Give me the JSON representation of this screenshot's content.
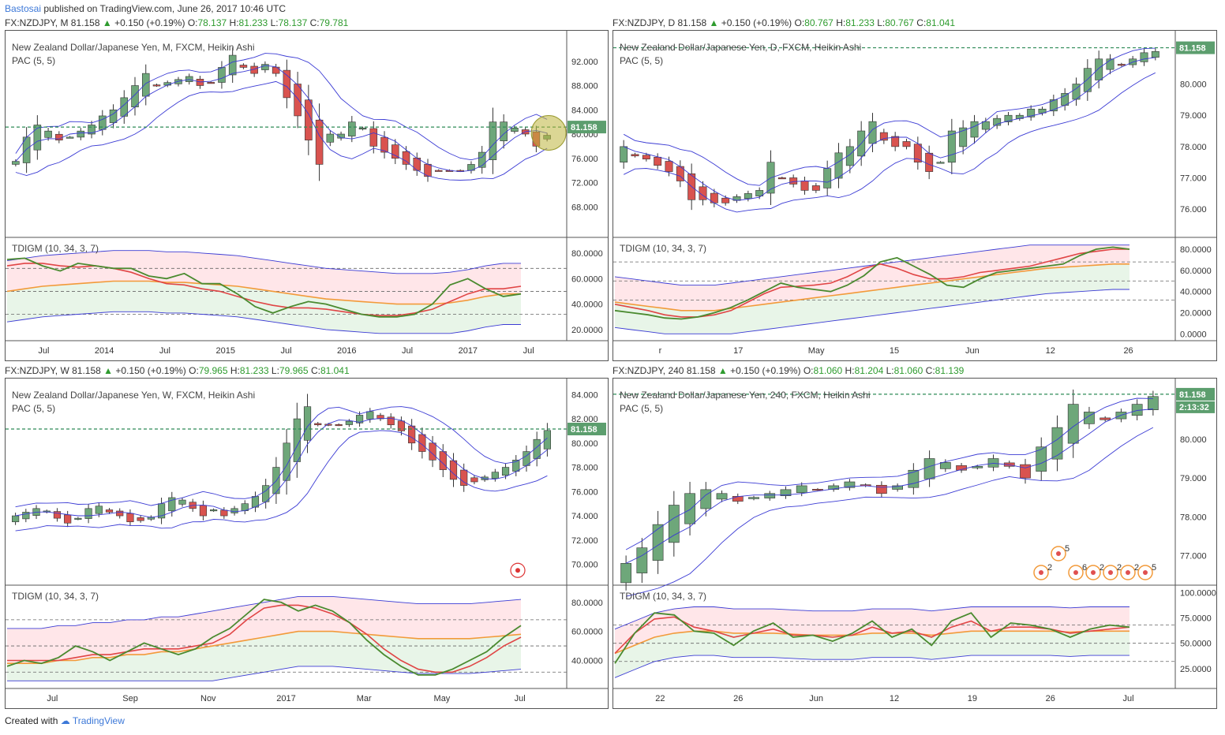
{
  "page": {
    "author": "Bastosai",
    "published": "published on TradingView.com, June 26, 2017 10:46 UTC",
    "created_with": "Created with",
    "brand": "TradingView"
  },
  "colors": {
    "bull": "#6ea77a",
    "bear": "#d9534f",
    "pac": "#3b3bd4",
    "tdi_green": "#4a8a2f",
    "tdi_red": "#e04545",
    "tdi_orange": "#f29a3a",
    "price_line": "#2e8b57",
    "price_tag": "#5c9e6e"
  },
  "chart_data": [
    {
      "id": "monthly",
      "type": "candlestick",
      "header": {
        "symbol": "FX:NZDJPY, M",
        "last": "81.158",
        "change": "+0.150 (+0.19%)",
        "o": "78.137",
        "h": "81.233",
        "l": "78.137",
        "c": "79.781"
      },
      "title": "New Zealand Dollar/Japanese Yen, M, FXCM, Heikin Ashi",
      "indicator": "PAC (5, 5)",
      "price_ticks": [
        "92.000",
        "88.000",
        "84.000",
        "80.000",
        "76.000",
        "72.000",
        "68.000"
      ],
      "price_range": [
        64,
        96
      ],
      "price_tag": "81.158",
      "tdi_label": "TDIGM (10, 34, 3, 7)",
      "tdi_ticks": [
        "80.0000",
        "60.0000",
        "40.0000",
        "20.0000"
      ],
      "tdi_range": [
        15,
        88
      ],
      "time_labels": [
        "Jul",
        "2014",
        "Jul",
        "2015",
        "Jul",
        "2016",
        "Jul",
        "2017",
        "Jul"
      ],
      "closes": [
        75.5,
        79.5,
        81.5,
        80.5,
        79,
        79.5,
        80.5,
        81.5,
        83,
        84,
        86,
        88,
        90,
        88,
        88.5,
        89,
        89.5,
        88,
        88.5,
        91,
        93,
        91,
        90,
        91.5,
        90,
        86,
        83,
        79,
        75,
        80,
        80,
        82,
        81,
        78,
        77,
        76,
        75,
        74,
        73,
        74,
        74,
        74,
        75,
        77,
        82,
        82,
        81,
        80,
        78,
        79.8
      ],
      "tdi_green": [
        75,
        76,
        70,
        66,
        72,
        70,
        68,
        68,
        62,
        60,
        64,
        56,
        56,
        48,
        38,
        33,
        38,
        42,
        40,
        36,
        32,
        30,
        30,
        32,
        40,
        55,
        60,
        52,
        46,
        48
      ],
      "tdi_red": [
        70,
        72,
        72,
        70,
        69,
        70,
        68,
        65,
        60,
        56,
        55,
        52,
        50,
        46,
        42,
        39,
        37,
        37,
        36,
        34,
        32,
        31,
        31,
        33,
        36,
        42,
        48,
        52,
        52,
        54
      ],
      "tdi_orange": [
        50,
        52,
        54,
        55,
        56,
        57,
        58,
        58,
        58,
        57,
        57,
        56,
        55,
        54,
        52,
        50,
        48,
        46,
        44,
        43,
        42,
        41,
        40,
        40,
        40,
        41,
        43,
        46,
        48,
        48
      ]
    },
    {
      "id": "daily",
      "type": "candlestick",
      "header": {
        "symbol": "FX:NZDJPY, D",
        "last": "81.158",
        "change": "+0.150 (+0.19%)",
        "o": "80.767",
        "h": "81.233",
        "l": "80.767",
        "c": "81.041"
      },
      "title": "New Zealand Dollar/Japanese Yen, D, FXCM, Heikin Ashi",
      "indicator": "PAC (5, 5)",
      "price_ticks": [
        "81.158",
        "80.000",
        "79.000",
        "78.000",
        "77.000",
        "76.000"
      ],
      "price_range": [
        75.3,
        81.5
      ],
      "price_tag": "81.158",
      "tdi_label": "TDIGM (10, 34, 3, 7)",
      "tdi_ticks": [
        "80.0000",
        "60.0000",
        "40.0000",
        "20.0000",
        "0.0000"
      ],
      "tdi_range": [
        -2,
        86
      ],
      "time_labels": [
        "r",
        "17",
        "May",
        "15",
        "Jun",
        "12",
        "26"
      ],
      "closes": [
        78,
        77.7,
        77.6,
        77.4,
        77.2,
        76.9,
        76.3,
        76.3,
        76.2,
        76.2,
        76.4,
        76.5,
        76.6,
        77.5,
        77,
        76.8,
        76.6,
        76.6,
        77.3,
        77.8,
        78,
        78.5,
        78.8,
        78.2,
        78,
        78,
        77.5,
        77.2,
        77.5,
        78.5,
        78.6,
        78.8,
        78.8,
        78.9,
        79,
        79,
        79.2,
        79.2,
        79.5,
        79.7,
        80,
        80.5,
        80.8,
        80.8,
        80.6,
        80.8,
        81.0,
        81.04
      ],
      "tdi_green": [
        22,
        20,
        18,
        15,
        14,
        16,
        20,
        25,
        32,
        40,
        48,
        44,
        42,
        40,
        46,
        55,
        68,
        72,
        64,
        56,
        46,
        44,
        52,
        58,
        60,
        62,
        64,
        66,
        74,
        80,
        82,
        80
      ],
      "tdi_red": [
        28,
        25,
        22,
        18,
        16,
        16,
        18,
        22,
        30,
        38,
        44,
        45,
        46,
        48,
        54,
        62,
        66,
        62,
        56,
        52,
        52,
        54,
        58,
        60,
        62,
        64,
        68,
        72,
        76,
        78,
        80,
        80
      ],
      "tdi_orange": [
        30,
        28,
        26,
        24,
        22,
        22,
        22,
        24,
        26,
        28,
        30,
        32,
        34,
        36,
        38,
        40,
        42,
        44,
        46,
        48,
        50,
        52,
        54,
        56,
        58,
        60,
        62,
        63,
        64,
        65,
        66,
        66
      ]
    },
    {
      "id": "weekly",
      "type": "candlestick",
      "header": {
        "symbol": "FX:NZDJPY, W",
        "last": "81.158",
        "change": "+0.150 (+0.19%)",
        "o": "79.965",
        "h": "81.233",
        "l": "79.965",
        "c": "81.041"
      },
      "title": "New Zealand Dollar/Japanese Yen, W, FXCM, Heikin Ashi",
      "indicator": "PAC (5, 5)",
      "price_ticks": [
        "84.000",
        "82.000",
        "80.000",
        "78.000",
        "76.000",
        "74.000",
        "72.000",
        "70.000"
      ],
      "price_range": [
        68.8,
        84.8
      ],
      "price_tag": "81.158",
      "tdi_label": "TDIGM (10, 34, 3, 7)",
      "tdi_ticks": [
        "80.0000",
        "60.0000",
        "40.0000"
      ],
      "tdi_range": [
        24,
        88
      ],
      "time_labels": [
        "Jul",
        "Sep",
        "Nov",
        "2017",
        "Mar",
        "May",
        "Jul"
      ],
      "closes": [
        74,
        74.3,
        74.6,
        74.4,
        73.8,
        73.4,
        73.8,
        74.6,
        74.8,
        74.3,
        74,
        73.5,
        73.6,
        73.9,
        75,
        75.5,
        75.3,
        74.6,
        74,
        74.5,
        74,
        74.6,
        75,
        75.6,
        76.5,
        78,
        80,
        82,
        83,
        81.5,
        81.5,
        81.5,
        81.8,
        82.3,
        82.6,
        82,
        81.5,
        81,
        80,
        79.3,
        78.6,
        77.8,
        77,
        76.5,
        76.8,
        77.2,
        77.6,
        78,
        78.6,
        79.3,
        80.3,
        81.04
      ],
      "tdi_green": [
        36,
        40,
        38,
        42,
        50,
        46,
        40,
        46,
        52,
        48,
        44,
        48,
        56,
        62,
        72,
        82,
        80,
        74,
        78,
        74,
        66,
        54,
        44,
        36,
        30,
        30,
        34,
        40,
        46,
        56,
        64
      ],
      "tdi_red": [
        40,
        40,
        40,
        40,
        42,
        44,
        44,
        46,
        48,
        48,
        48,
        50,
        52,
        58,
        68,
        76,
        78,
        78,
        76,
        72,
        66,
        58,
        48,
        40,
        34,
        32,
        32,
        36,
        42,
        50,
        56
      ],
      "tdi_orange": [
        38,
        38,
        38,
        40,
        40,
        42,
        42,
        44,
        44,
        46,
        46,
        48,
        50,
        52,
        54,
        56,
        58,
        60,
        60,
        60,
        59,
        58,
        57,
        56,
        55,
        55,
        55,
        55,
        56,
        57,
        58
      ]
    },
    {
      "id": "h4",
      "type": "candlestick",
      "header": {
        "symbol": "FX:NZDJPY, 240",
        "last": "81.158",
        "change": "+0.150 (+0.19%)",
        "o": "81.060",
        "h": "81.204",
        "l": "81.060",
        "c": "81.139"
      },
      "title": "New Zealand Dollar/Japanese Yen, 240, FXCM, Heikin Ashi",
      "indicator": "PAC (5, 5)",
      "price_ticks": [
        "81.158",
        "80.000",
        "79.000",
        "78.000",
        "77.000"
      ],
      "price_range": [
        76.4,
        81.4
      ],
      "price_tag": "81.158",
      "countdown": "2:13:32",
      "tdi_label": "TDIGM (10, 34, 3, 7)",
      "tdi_ticks": [
        "100.0000",
        "75.0000",
        "50.0000",
        "25.0000"
      ],
      "tdi_range": [
        10,
        102
      ],
      "time_labels": [
        "22",
        "26",
        "Jun",
        "12",
        "19",
        "26",
        "Jul"
      ],
      "events": [
        "2",
        "5",
        "6",
        "2",
        "2",
        "2",
        "5"
      ],
      "closes": [
        76.8,
        77.2,
        77.8,
        78.3,
        78.6,
        78.7,
        78.6,
        78.4,
        78.5,
        78.6,
        78.7,
        78.8,
        78.7,
        78.8,
        78.9,
        78.8,
        78.6,
        78.8,
        79.2,
        79.5,
        79.4,
        79.2,
        79.3,
        79.5,
        79.3,
        79.0,
        79.8,
        80.3,
        80.9,
        80.7,
        80.5,
        80.7,
        80.9,
        81.1
      ],
      "tdi_green": [
        30,
        60,
        80,
        78,
        62,
        60,
        48,
        62,
        70,
        56,
        58,
        52,
        60,
        72,
        56,
        64,
        48,
        72,
        80,
        56,
        70,
        68,
        64,
        56,
        64,
        68,
        66
      ],
      "tdi_red": [
        40,
        60,
        74,
        76,
        66,
        62,
        56,
        60,
        64,
        58,
        58,
        56,
        58,
        66,
        60,
        62,
        56,
        66,
        72,
        62,
        66,
        66,
        64,
        60,
        62,
        64,
        66
      ],
      "tdi_orange": [
        40,
        48,
        56,
        60,
        62,
        62,
        60,
        60,
        60,
        59,
        58,
        58,
        58,
        60,
        60,
        60,
        58,
        60,
        62,
        62,
        62,
        62,
        62,
        61,
        62,
        62,
        62
      ]
    }
  ]
}
